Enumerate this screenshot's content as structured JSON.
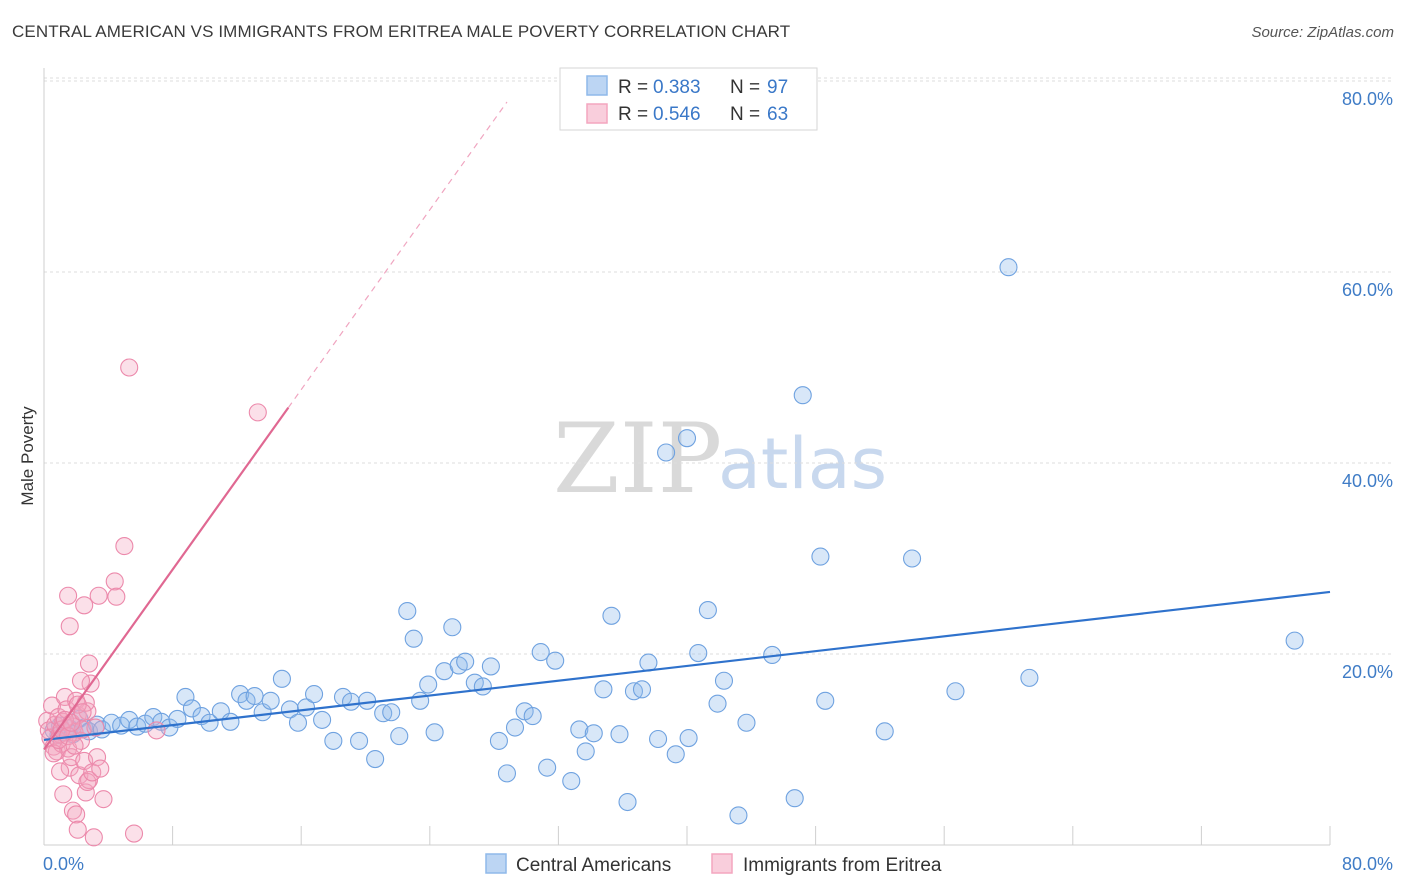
{
  "header": {
    "title": "CENTRAL AMERICAN VS IMMIGRANTS FROM ERITREA MALE POVERTY CORRELATION CHART",
    "source": "Source: ZipAtlas.com"
  },
  "watermark": {
    "zip": "ZIP",
    "atlas": "atlas"
  },
  "colors": {
    "blue": "#8fb9ea",
    "blue_line": "#2f72cc",
    "pink": "#f4a6bf",
    "pink_line": "#e06892",
    "grid": "#dddddd",
    "tick_text": "#3f7cc6"
  },
  "legend_top": {
    "rows": [
      {
        "r_label": "R = ",
        "r_value": "0.383",
        "n_label": "N = ",
        "n_value": "97"
      },
      {
        "r_label": "R = ",
        "r_value": "0.546",
        "n_label": "N = ",
        "n_value": "63"
      }
    ]
  },
  "legend_bottom": {
    "items": [
      "Central Americans",
      "Immigrants from Eritrea"
    ]
  },
  "chart_data": {
    "type": "scatter",
    "xlabel": "",
    "ylabel": "Male Poverty",
    "xlim": [
      0,
      80
    ],
    "ylim": [
      0,
      80
    ],
    "x_tick_labels": [
      "0.0%",
      "80.0%"
    ],
    "y_tick_values": [
      20,
      40,
      60,
      80
    ],
    "y_tick_labels": [
      "20.0%",
      "40.0%",
      "60.0%",
      "80.0%"
    ],
    "grid": "horizontal-dashed",
    "legend_placement": "top-center",
    "series": [
      {
        "name": "Central Americans",
        "color": "#8fb9ea",
        "trend": {
          "x": [
            0,
            80
          ],
          "y": [
            11.0,
            26.5
          ]
        },
        "points": [
          [
            0.6,
            12.0
          ],
          [
            0.9,
            11.5
          ],
          [
            1.0,
            12.5
          ],
          [
            1.3,
            11.8
          ],
          [
            1.6,
            12.2
          ],
          [
            1.8,
            11.6
          ],
          [
            2.2,
            13.2
          ],
          [
            2.5,
            12.3
          ],
          [
            2.8,
            11.9
          ],
          [
            3.3,
            12.6
          ],
          [
            3.6,
            12.1
          ],
          [
            4.2,
            12.8
          ],
          [
            4.8,
            12.5
          ],
          [
            5.3,
            13.1
          ],
          [
            5.8,
            12.4
          ],
          [
            6.3,
            12.7
          ],
          [
            6.8,
            13.4
          ],
          [
            7.3,
            12.9
          ],
          [
            7.8,
            12.3
          ],
          [
            8.3,
            13.2
          ],
          [
            8.8,
            15.5
          ],
          [
            9.2,
            14.3
          ],
          [
            9.8,
            13.5
          ],
          [
            10.3,
            12.8
          ],
          [
            11.0,
            14.0
          ],
          [
            11.6,
            12.9
          ],
          [
            12.2,
            15.8
          ],
          [
            12.6,
            15.1
          ],
          [
            13.1,
            15.6
          ],
          [
            13.6,
            13.9
          ],
          [
            14.1,
            15.1
          ],
          [
            14.8,
            17.4
          ],
          [
            15.3,
            14.2
          ],
          [
            15.8,
            12.8
          ],
          [
            16.3,
            14.4
          ],
          [
            16.8,
            15.8
          ],
          [
            17.3,
            13.1
          ],
          [
            18.0,
            10.9
          ],
          [
            18.6,
            15.5
          ],
          [
            19.1,
            15.0
          ],
          [
            19.6,
            10.9
          ],
          [
            20.1,
            15.1
          ],
          [
            20.6,
            9.0
          ],
          [
            21.1,
            13.8
          ],
          [
            21.6,
            13.9
          ],
          [
            22.1,
            11.4
          ],
          [
            22.6,
            24.5
          ],
          [
            23.0,
            21.6
          ],
          [
            23.4,
            15.1
          ],
          [
            23.9,
            16.8
          ],
          [
            24.3,
            11.8
          ],
          [
            24.9,
            18.2
          ],
          [
            25.4,
            22.8
          ],
          [
            25.8,
            18.8
          ],
          [
            26.2,
            19.2
          ],
          [
            26.8,
            17.0
          ],
          [
            27.3,
            16.6
          ],
          [
            27.8,
            18.7
          ],
          [
            28.3,
            10.9
          ],
          [
            28.8,
            7.5
          ],
          [
            29.3,
            12.3
          ],
          [
            29.9,
            14.0
          ],
          [
            30.4,
            13.5
          ],
          [
            30.9,
            20.2
          ],
          [
            31.3,
            8.1
          ],
          [
            31.8,
            19.3
          ],
          [
            32.8,
            6.7
          ],
          [
            33.3,
            12.1
          ],
          [
            33.7,
            9.8
          ],
          [
            34.2,
            11.7
          ],
          [
            34.8,
            16.3
          ],
          [
            35.3,
            24.0
          ],
          [
            35.8,
            11.6
          ],
          [
            36.3,
            4.5
          ],
          [
            36.7,
            16.1
          ],
          [
            37.2,
            16.3
          ],
          [
            37.6,
            19.1
          ],
          [
            38.2,
            11.1
          ],
          [
            38.7,
            41.1
          ],
          [
            39.3,
            9.5
          ],
          [
            40.0,
            42.6
          ],
          [
            40.1,
            11.2
          ],
          [
            40.7,
            20.1
          ],
          [
            41.3,
            24.6
          ],
          [
            41.9,
            14.8
          ],
          [
            42.3,
            17.2
          ],
          [
            43.2,
            3.1
          ],
          [
            43.7,
            12.8
          ],
          [
            45.3,
            19.9
          ],
          [
            46.7,
            4.9
          ],
          [
            47.2,
            47.1
          ],
          [
            48.3,
            30.2
          ],
          [
            48.6,
            15.1
          ],
          [
            52.3,
            11.9
          ],
          [
            54.0,
            30.0
          ],
          [
            56.7,
            16.1
          ],
          [
            60.0,
            60.5
          ],
          [
            61.3,
            17.5
          ],
          [
            77.8,
            21.4
          ]
        ]
      },
      {
        "name": "Immigrants from Eritrea",
        "color": "#f4a6bf",
        "trend_solid": {
          "x": [
            0,
            15.2
          ],
          "y": [
            10.0,
            45.8
          ]
        },
        "trend_dashed": {
          "x": [
            15.2,
            28.8
          ],
          "y": [
            45.8,
            77.8
          ]
        },
        "points": [
          [
            0.2,
            13.0
          ],
          [
            0.3,
            12.0
          ],
          [
            0.4,
            11.2
          ],
          [
            0.5,
            14.6
          ],
          [
            0.6,
            10.3
          ],
          [
            0.7,
            12.6
          ],
          [
            0.8,
            9.8
          ],
          [
            0.9,
            13.4
          ],
          [
            1.0,
            11.6
          ],
          [
            1.1,
            10.6
          ],
          [
            1.2,
            12.9
          ],
          [
            1.3,
            15.5
          ],
          [
            1.4,
            14.2
          ],
          [
            1.5,
            10.1
          ],
          [
            1.6,
            8.1
          ],
          [
            1.7,
            9.2
          ],
          [
            1.8,
            12.4
          ],
          [
            1.9,
            11.8
          ],
          [
            2.0,
            15.1
          ],
          [
            2.1,
            13.6
          ],
          [
            2.2,
            7.3
          ],
          [
            2.3,
            10.9
          ],
          [
            2.4,
            12.1
          ],
          [
            2.5,
            8.8
          ],
          [
            2.6,
            5.5
          ],
          [
            2.7,
            14.0
          ],
          [
            2.8,
            6.8
          ],
          [
            2.9,
            16.9
          ],
          [
            1.0,
            7.7
          ],
          [
            1.2,
            5.3
          ],
          [
            1.5,
            26.1
          ],
          [
            1.6,
            22.9
          ],
          [
            1.8,
            3.6
          ],
          [
            2.0,
            3.2
          ],
          [
            2.1,
            1.6
          ],
          [
            2.3,
            17.2
          ],
          [
            2.5,
            25.1
          ],
          [
            2.6,
            14.9
          ],
          [
            2.7,
            6.6
          ],
          [
            2.8,
            19.0
          ],
          [
            3.0,
            7.6
          ],
          [
            3.1,
            0.8
          ],
          [
            3.3,
            9.2
          ],
          [
            3.4,
            26.1
          ],
          [
            3.5,
            8.0
          ],
          [
            3.7,
            4.8
          ],
          [
            4.4,
            27.6
          ],
          [
            4.5,
            26.0
          ],
          [
            5.0,
            31.3
          ],
          [
            5.3,
            50.0
          ],
          [
            5.6,
            1.2
          ],
          [
            7.0,
            12.0
          ],
          [
            13.3,
            45.3
          ],
          [
            0.6,
            9.6
          ],
          [
            0.9,
            11.0
          ],
          [
            1.1,
            12.1
          ],
          [
            1.3,
            13.1
          ],
          [
            1.5,
            11.4
          ],
          [
            1.7,
            12.8
          ],
          [
            1.9,
            10.4
          ],
          [
            2.1,
            14.7
          ],
          [
            2.4,
            13.9
          ],
          [
            3.2,
            12.3
          ]
        ]
      }
    ]
  }
}
